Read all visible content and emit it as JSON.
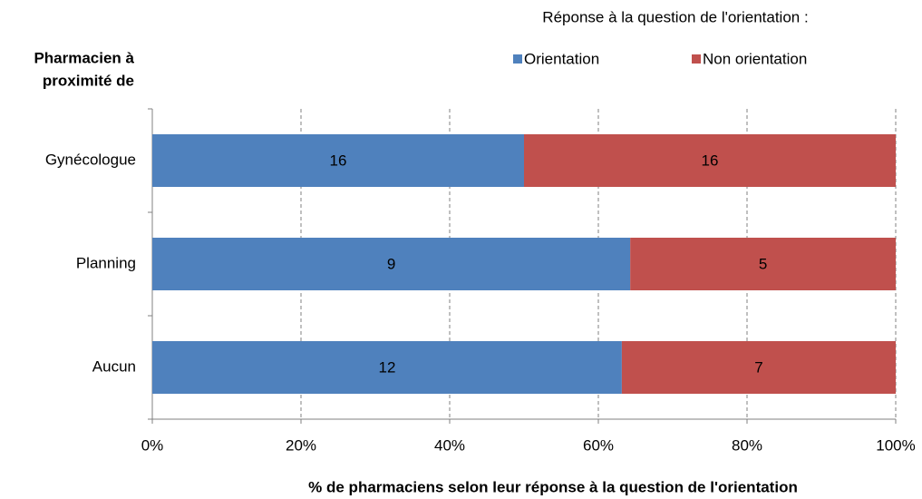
{
  "chart_data": {
    "type": "bar",
    "orientation": "horizontal",
    "stacking": "percent",
    "y_label": [
      "Pharmacien à",
      "proximité de"
    ],
    "x_label": "% de pharmaciens selon leur réponse à la question de l'orientation",
    "legend_title": "Réponse à la question de l'orientation :",
    "categories": [
      "Gynécologue",
      "Planning",
      "Aucun"
    ],
    "series": [
      {
        "name": "Orientation",
        "color": "#4f81bd",
        "values": [
          16,
          9,
          12
        ]
      },
      {
        "name": "Non orientation",
        "color": "#c0504d",
        "values": [
          16,
          5,
          7
        ]
      }
    ],
    "xlim": [
      0,
      100
    ],
    "xticks": [
      {
        "value": 0,
        "label": "0%"
      },
      {
        "value": 20,
        "label": "20%"
      },
      {
        "value": 40,
        "label": "40%"
      },
      {
        "value": 60,
        "label": "60%"
      },
      {
        "value": 80,
        "label": "80%"
      },
      {
        "value": 100,
        "label": "100%"
      }
    ],
    "grid": true,
    "legend": "top"
  }
}
